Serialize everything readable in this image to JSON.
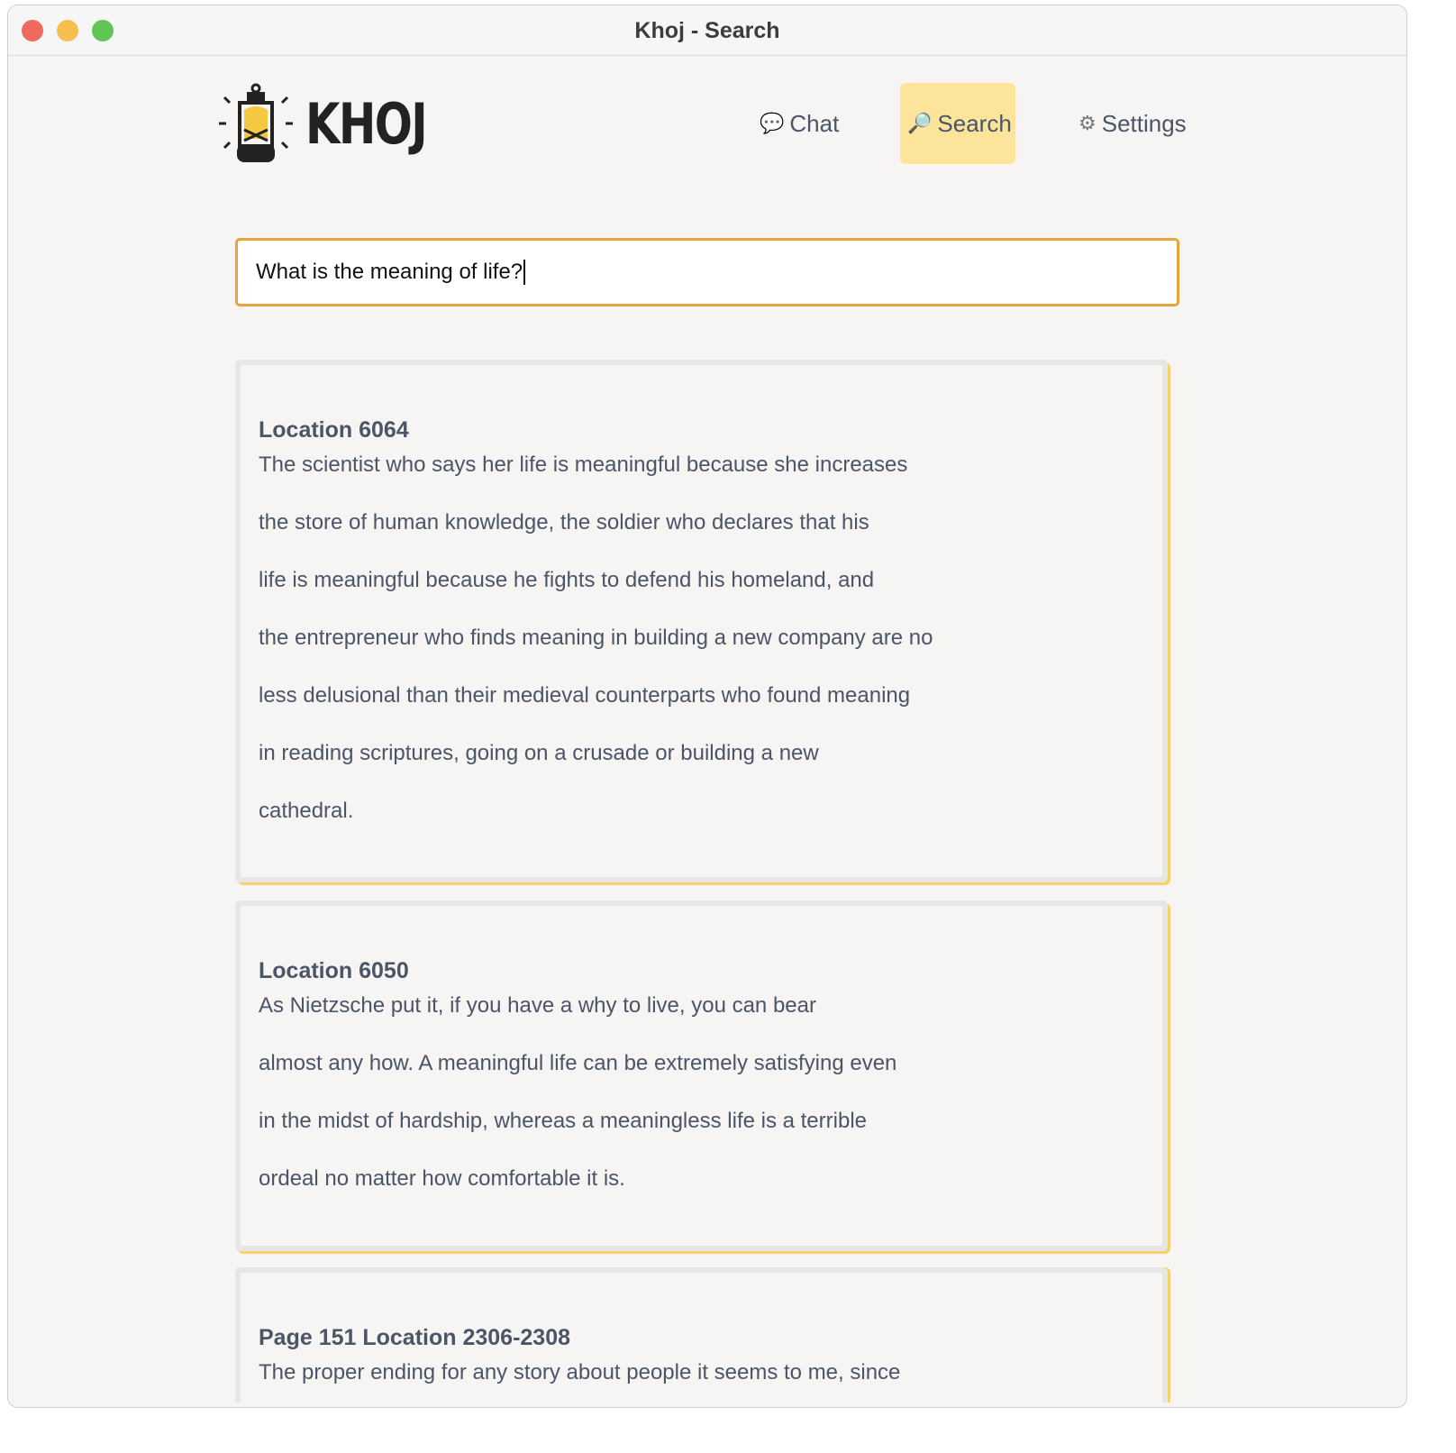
{
  "window": {
    "title": "Khoj - Search",
    "controls": {
      "close": "#ee6a5e",
      "minimize": "#f5bf4f",
      "zoom": "#61c554"
    }
  },
  "logo": {
    "text": "KHOJ"
  },
  "nav": [
    {
      "label": "Chat",
      "icon": "speech-bubble-icon",
      "active": false
    },
    {
      "label": "Search",
      "icon": "magnifier-icon",
      "active": true
    },
    {
      "label": "Settings",
      "icon": "gear-icon",
      "active": false
    }
  ],
  "search": {
    "value": "What is the meaning of life?",
    "accent": "#e8a33d"
  },
  "results": [
    {
      "title": "Location 6064",
      "lines": [
        "The scientist who says her life is meaningful because she increases",
        "the store of human knowledge, the soldier who declares that his",
        "life is meaningful because he fights to defend his homeland, and",
        "the entrepreneur who finds meaning in building a new company are no",
        "less delusional than their medieval counterparts who found meaning",
        "in reading scriptures, going on a crusade or building a new",
        "cathedral."
      ]
    },
    {
      "title": "Location 6050",
      "lines": [
        "As Nietzsche put it, if you have a why to live, you can bear",
        "almost any how. A meaningful life can be extremely satisfying even",
        "in the midst of hardship, whereas a meaningless life is a terrible",
        "ordeal no matter how comfortable it is."
      ]
    },
    {
      "title": "Page 151 Location 2306-2308",
      "lines": [
        "The proper ending for any story about people it seems to me, since"
      ]
    }
  ]
}
